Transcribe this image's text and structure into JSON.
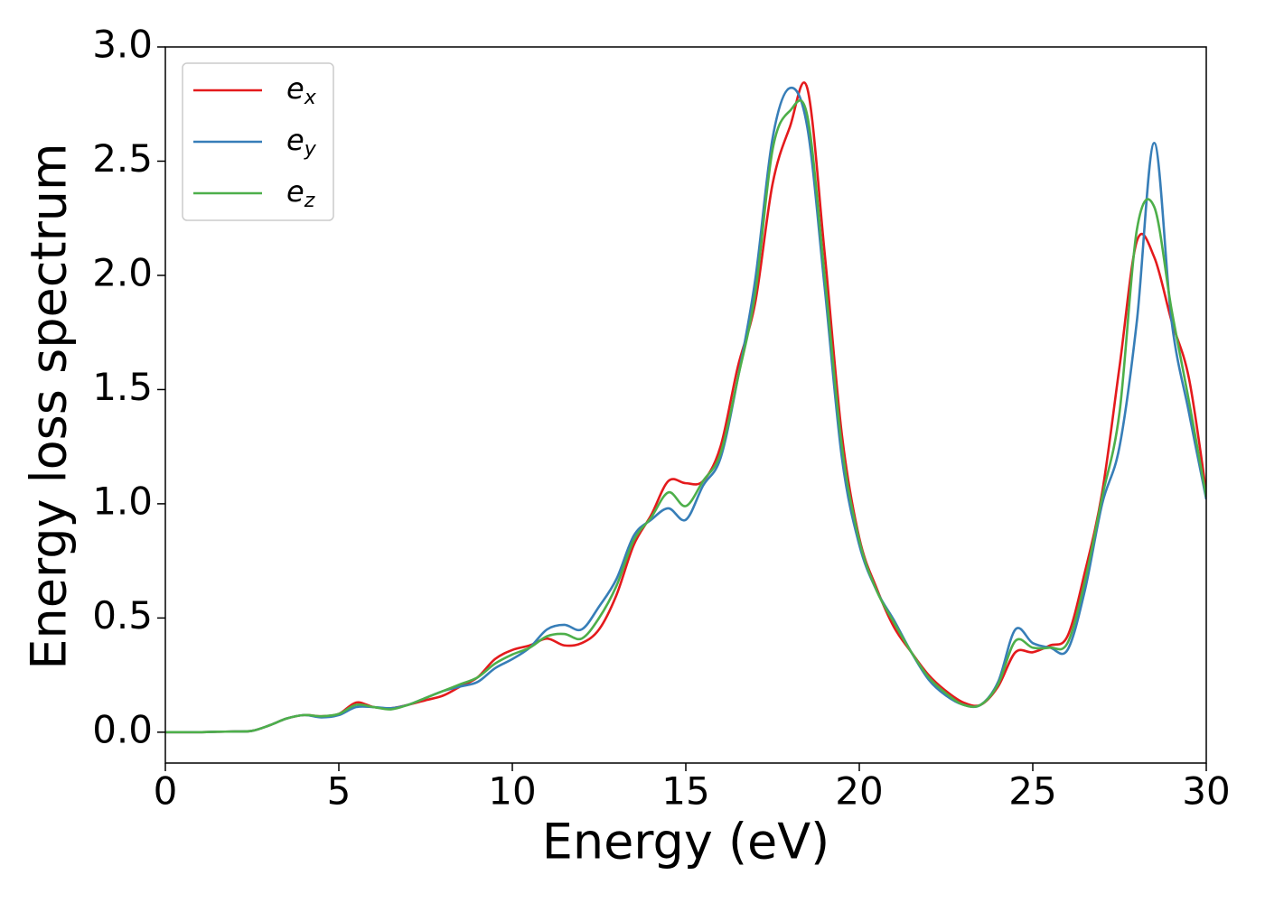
{
  "chart_data": {
    "type": "line",
    "x_label": "Energy (eV)",
    "y_label": "Energy loss spectrum",
    "x": [
      0,
      0.5,
      1,
      1.5,
      2,
      2.5,
      3,
      3.5,
      4,
      4.5,
      5,
      5.5,
      6,
      6.5,
      7,
      7.5,
      8,
      8.5,
      9,
      9.5,
      10,
      10.5,
      11,
      11.5,
      12,
      12.5,
      13,
      13.5,
      14,
      14.5,
      15,
      15.5,
      16,
      16.5,
      17,
      17.5,
      18,
      18.5,
      19,
      19.5,
      20,
      20.5,
      21,
      21.5,
      22,
      22.5,
      23,
      23.5,
      24,
      24.5,
      25,
      25.5,
      26,
      26.5,
      27,
      27.5,
      28,
      28.5,
      29,
      29.5,
      30
    ],
    "series": [
      {
        "name": "ex",
        "color": "#e41a1c",
        "values": [
          0,
          0,
          0,
          0.002,
          0.003,
          0.006,
          0.03,
          0.06,
          0.075,
          0.07,
          0.08,
          0.13,
          0.11,
          0.105,
          0.12,
          0.14,
          0.16,
          0.2,
          0.24,
          0.32,
          0.36,
          0.38,
          0.41,
          0.38,
          0.39,
          0.45,
          0.6,
          0.82,
          0.95,
          1.1,
          1.09,
          1.1,
          1.25,
          1.6,
          1.88,
          2.4,
          2.65,
          2.82,
          2.1,
          1.3,
          0.85,
          0.63,
          0.46,
          0.35,
          0.25,
          0.18,
          0.13,
          0.12,
          0.2,
          0.35,
          0.35,
          0.38,
          0.42,
          0.7,
          1.05,
          1.6,
          2.15,
          2.08,
          1.8,
          1.55,
          1.05
        ]
      },
      {
        "name": "ey",
        "color": "#377eb8",
        "values": [
          0,
          0,
          0,
          0.002,
          0.003,
          0.006,
          0.03,
          0.06,
          0.075,
          0.065,
          0.075,
          0.11,
          0.11,
          0.105,
          0.12,
          0.15,
          0.18,
          0.2,
          0.22,
          0.28,
          0.32,
          0.37,
          0.45,
          0.47,
          0.45,
          0.55,
          0.67,
          0.86,
          0.93,
          0.98,
          0.93,
          1.08,
          1.2,
          1.55,
          1.98,
          2.6,
          2.82,
          2.65,
          1.95,
          1.2,
          0.82,
          0.62,
          0.49,
          0.35,
          0.23,
          0.16,
          0.12,
          0.12,
          0.22,
          0.45,
          0.39,
          0.37,
          0.36,
          0.62,
          1.0,
          1.25,
          1.8,
          2.58,
          1.8,
          1.4,
          1.02
        ]
      },
      {
        "name": "ez",
        "color": "#4daf4a",
        "values": [
          0,
          0,
          0,
          0.002,
          0.003,
          0.006,
          0.03,
          0.06,
          0.075,
          0.07,
          0.08,
          0.12,
          0.11,
          0.1,
          0.12,
          0.15,
          0.18,
          0.21,
          0.24,
          0.3,
          0.34,
          0.37,
          0.42,
          0.43,
          0.41,
          0.5,
          0.64,
          0.84,
          0.94,
          1.05,
          0.99,
          1.1,
          1.22,
          1.55,
          1.92,
          2.55,
          2.72,
          2.7,
          2.0,
          1.25,
          0.84,
          0.62,
          0.48,
          0.35,
          0.24,
          0.17,
          0.12,
          0.12,
          0.21,
          0.4,
          0.37,
          0.37,
          0.39,
          0.66,
          1.03,
          1.4,
          2.2,
          2.3,
          1.85,
          1.45,
          1.03
        ]
      }
    ],
    "xlim": [
      0,
      30
    ],
    "xticks": [
      0,
      5,
      10,
      15,
      20,
      25,
      30
    ],
    "ylim": [
      -0.135,
      3.0
    ],
    "yticks": [
      {
        "value": 0,
        "label": "0.0"
      },
      0.5,
      {
        "value": 1,
        "label": "1.0"
      },
      1.5,
      {
        "value": 2,
        "label": "2.0"
      },
      2.5,
      {
        "value": 3,
        "label": "3.0"
      }
    ],
    "legend": "upper left",
    "grid": false
  }
}
